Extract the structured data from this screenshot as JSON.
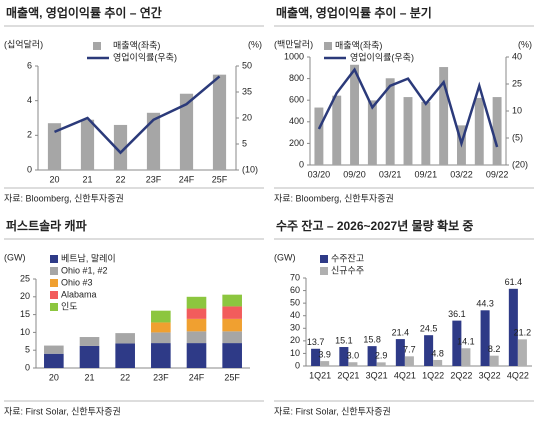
{
  "chart_data": [
    {
      "type": "bar",
      "title": "매출액, 영업이익률 추이 – 연간",
      "y_unit_label": "(십억달러)",
      "y2_unit_label": "(%)",
      "categories": [
        "20",
        "21",
        "22",
        "23F",
        "24F",
        "25F"
      ],
      "series": [
        {
          "name": "매출액(좌축)",
          "color": "#a6a6a6",
          "values": [
            2.7,
            2.9,
            2.6,
            3.3,
            4.4,
            5.5
          ]
        },
        {
          "name": "영업이익률(우축)",
          "type": "line",
          "axis": "y2",
          "color": "#2b3a7a",
          "values": [
            12,
            20,
            0,
            19,
            28,
            44
          ]
        }
      ],
      "ylim": [
        0,
        6
      ],
      "yticks": [
        0,
        2,
        4,
        6
      ],
      "y2lim": [
        -10,
        50
      ],
      "y2ticks": [
        {
          "value": -10,
          "label": "(10)"
        },
        5,
        20,
        35,
        50
      ],
      "legend": "upper-center",
      "source": "자료: Bloomberg, 신한투자증권"
    },
    {
      "type": "bar",
      "title": "매출액, 영업이익률 추이 – 분기",
      "y_unit_label": "(백만달러)",
      "y2_unit_label": "(%)",
      "categories": [
        "03/20",
        null,
        "09/20",
        null,
        "03/21",
        null,
        "09/21",
        null,
        "03/22",
        null,
        "09/22"
      ],
      "series": [
        {
          "name": "매출액(좌축)",
          "color": "#a6a6a6",
          "values": [
            532,
            642,
            928,
            598,
            803,
            629,
            584,
            907,
            367,
            621,
            629
          ]
        },
        {
          "name": "영업이익률(우축)",
          "type": "line",
          "axis": "y2",
          "color": "#2b3a7a",
          "values": [
            0,
            20,
            33,
            12,
            24,
            28,
            14,
            26,
            -8,
            24,
            -10
          ]
        }
      ],
      "ylim": [
        0,
        1000
      ],
      "yticks": [
        0,
        200,
        400,
        600,
        800,
        1000
      ],
      "y2lim": [
        -20,
        40
      ],
      "y2ticks": [
        {
          "value": -20,
          "label": "(20)"
        },
        {
          "value": -5,
          "label": "(5)"
        },
        10,
        25,
        40
      ],
      "legend": "upper-left",
      "source": "자료: Bloomberg, 신한투자증권"
    },
    {
      "type": "stacked_bar",
      "title": "퍼스트솔라 캐파",
      "y_unit_label": "(GW)",
      "categories": [
        "20",
        "21",
        "22",
        "23F",
        "24F",
        "25F"
      ],
      "series": [
        {
          "name": "베트남, 말레이",
          "color": "#2e3a87",
          "values": [
            4.0,
            6.2,
            6.9,
            7.0,
            7.0,
            7.0
          ]
        },
        {
          "name": "Ohio #1, #2",
          "color": "#a6a6a6",
          "values": [
            2.3,
            2.5,
            2.9,
            3.0,
            3.3,
            3.3
          ]
        },
        {
          "name": "Ohio #3",
          "color": "#f0a030",
          "values": [
            null,
            null,
            null,
            2.8,
            3.5,
            3.5
          ]
        },
        {
          "name": "Alabama",
          "color": "#f25c5c",
          "values": [
            null,
            null,
            null,
            null,
            2.9,
            3.5
          ]
        },
        {
          "name": "인도",
          "color": "#8cc63f",
          "values": [
            null,
            null,
            null,
            3.3,
            3.3,
            3.3
          ]
        }
      ],
      "ylim": [
        0,
        25
      ],
      "yticks": [
        0,
        5,
        10,
        15,
        20,
        25
      ],
      "legend": "upper-left",
      "source": "자료: First Solar, 신한투자증권"
    },
    {
      "type": "bar",
      "title": "수주 잔고 – 2026~2027년 물량 확보 중",
      "y_unit_label": "(GW)",
      "categories": [
        "1Q21",
        "2Q21",
        "3Q21",
        "4Q21",
        "1Q22",
        "2Q22",
        "3Q22",
        "4Q22"
      ],
      "series": [
        {
          "name": "수주잔고",
          "color": "#2e3a87",
          "values": [
            13.7,
            15.1,
            15.8,
            21.4,
            24.5,
            36.1,
            44.3,
            61.4
          ]
        },
        {
          "name": "신규수주",
          "color": "#b0b0b0",
          "values": [
            3.9,
            3.0,
            2.9,
            7.7,
            4.8,
            14.1,
            8.2,
            21.2
          ],
          "value_labels": [
            "3.9",
            "3.0",
            "2.9",
            "7.7",
            "4.8",
            "14.1",
            "8.2",
            "21.2"
          ]
        }
      ],
      "ylim": [
        0,
        70
      ],
      "yticks": [
        0,
        10,
        20,
        30,
        40,
        50,
        60,
        70
      ],
      "data_labels": true,
      "legend": "upper-left",
      "source": "자료: First Solar, 신한투자증권"
    }
  ]
}
